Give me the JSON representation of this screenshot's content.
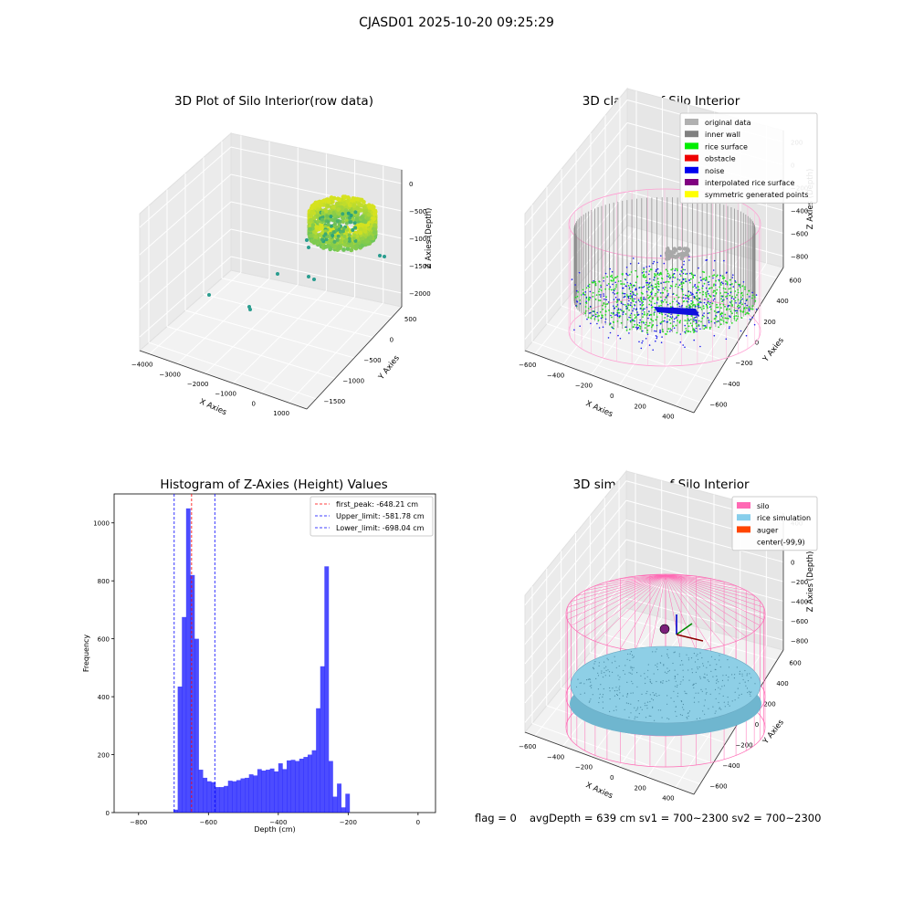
{
  "suptitle": "CJASD01 2025-10-20 09:25:29",
  "chart_data": [
    {
      "type": "scatter",
      "title": "3D Plot of Silo Interior(row data)",
      "xlabel": "X Axies",
      "ylabel": "Y Axies",
      "zlabel": "Z Axies (Depth)",
      "x_ticks": [
        "−4000",
        "−3000",
        "−2000",
        "−1000",
        "0",
        "1000"
      ],
      "y_ticks": [
        "−1500",
        "−1000",
        "−500",
        "0",
        "500"
      ],
      "z_ticks": [
        "0",
        "−500",
        "−1000",
        "−1500",
        "−2000"
      ],
      "colormap": "viridis"
    },
    {
      "type": "scatter",
      "title": "3D classify of Silo Interior",
      "xlabel": "X Axies",
      "ylabel": "Y Axies",
      "zlabel": "Z Axies (Depth)",
      "x_ticks": [
        "−600",
        "−400",
        "−200",
        "0",
        "200",
        "400"
      ],
      "y_ticks": [
        "−600",
        "−400",
        "−200",
        "0",
        "200",
        "400",
        "600"
      ],
      "z_ticks": [
        "200",
        "0",
        "−200",
        "−400",
        "−600",
        "−800"
      ],
      "legend": [
        {
          "label": "original data",
          "color": "#b0b0b0"
        },
        {
          "label": "inner wall",
          "color": "#808080"
        },
        {
          "label": "rice surface",
          "color": "#00ee00"
        },
        {
          "label": "obstacle",
          "color": "#ee0000"
        },
        {
          "label": "noise",
          "color": "#0000ee"
        },
        {
          "label": "interpolated rice surface",
          "color": "#800080"
        },
        {
          "label": "symmetric generated points",
          "color": "#ffff00"
        }
      ]
    },
    {
      "type": "bar",
      "title": "Histogram of Z-Axies (Height) Values",
      "xlabel": "Depth (cm)",
      "ylabel": "Frequency",
      "xlim": [
        -870,
        50
      ],
      "ylim": [
        0,
        1100
      ],
      "x_ticks": [
        "−800",
        "−600",
        "−400",
        "−200",
        "0"
      ],
      "y_ticks": [
        "0",
        "200",
        "400",
        "600",
        "800",
        "1000"
      ],
      "bin_start": -700,
      "bin_width": 12,
      "values": [
        10,
        435,
        675,
        1050,
        820,
        600,
        148,
        120,
        108,
        105,
        88,
        88,
        92,
        110,
        108,
        112,
        118,
        120,
        132,
        128,
        150,
        145,
        148,
        152,
        142,
        170,
        150,
        180,
        182,
        178,
        186,
        192,
        200,
        215,
        360,
        505,
        850,
        178,
        55,
        100,
        18,
        65
      ],
      "bar_color": "#0000ff",
      "vlines": [
        {
          "label": "first_peak: -648.21 cm",
          "x": -648.21,
          "color": "#ff0000"
        },
        {
          "label": "Upper_limit: -581.78 cm",
          "x": -581.78,
          "color": "#0000ff"
        },
        {
          "label": "Lower_limit: -698.04 cm",
          "x": -698.04,
          "color": "#0000ff"
        }
      ],
      "legend_position": "upper right"
    },
    {
      "type": "surface",
      "title": "3D simulation of Silo Interior",
      "xlabel": "X Axies",
      "ylabel": "Y Axies",
      "zlabel": "Z Axies (Depth)",
      "x_ticks": [
        "−600",
        "−400",
        "−200",
        "0",
        "200",
        "400"
      ],
      "y_ticks": [
        "−600",
        "−400",
        "−200",
        "0",
        "200",
        "400",
        "600"
      ],
      "z_ticks": [
        "400",
        "200",
        "0",
        "−200",
        "−400",
        "−600",
        "−800"
      ],
      "legend": [
        {
          "label": "silo",
          "color": "#ff69b4"
        },
        {
          "label": "rice simulation",
          "color": "#87ceeb"
        },
        {
          "label": "auger",
          "color": "#ff4500"
        },
        {
          "label": "center(-99,9)",
          "color": ""
        }
      ]
    }
  ],
  "footer": {
    "flag": "flag = 0",
    "stats": "avgDepth = 639 cm  sv1 = 700~2300  sv2 = 700~2300"
  }
}
